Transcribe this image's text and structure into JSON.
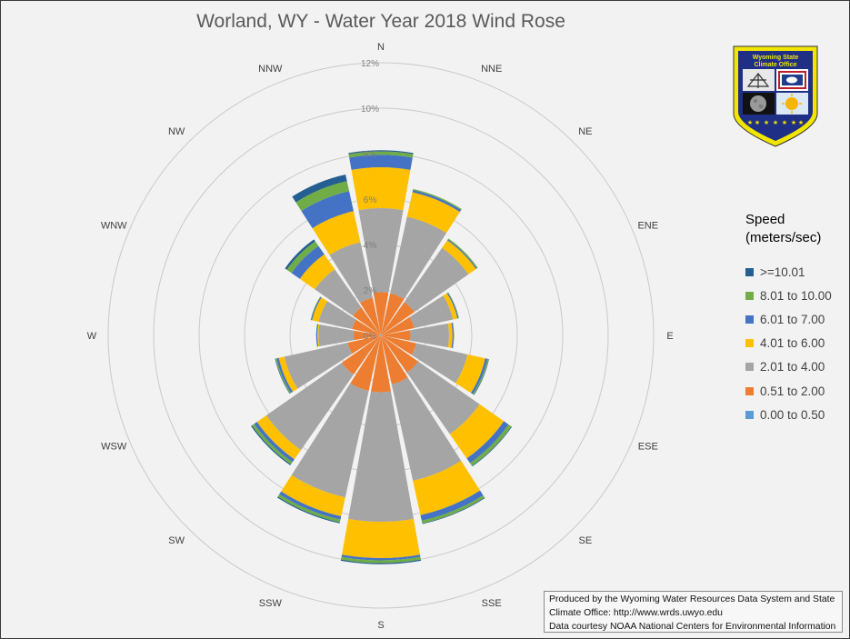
{
  "chart_data": {
    "type": "polar-stacked-bar",
    "title": "Worland, WY - Water Year 2018 Wind Rose",
    "directions": [
      "N",
      "NNE",
      "NE",
      "ENE",
      "E",
      "ESE",
      "SE",
      "SSE",
      "S",
      "SSW",
      "SW",
      "WSW",
      "W",
      "WNW",
      "NW",
      "NNW"
    ],
    "radial_ticks": [
      "0%",
      "2%",
      "4%",
      "6%",
      "8%",
      "10%",
      "12%"
    ],
    "radial_max": 12,
    "legend_title": "Speed (meters/sec)",
    "legend_title_line1": "Speed",
    "legend_title_line2": "(meters/sec)",
    "series": [
      {
        "name": "0.00 to 0.50",
        "color": "#5b9bd5",
        "values": [
          0.05,
          0.05,
          0.05,
          0.05,
          0.05,
          0.05,
          0.05,
          0.05,
          0.05,
          0.05,
          0.05,
          0.05,
          0.05,
          0.05,
          0.05,
          0.05
        ]
      },
      {
        "name": "0.51 to 2.00",
        "color": "#ed7d31",
        "values": [
          1.85,
          1.85,
          1.75,
          1.45,
          1.25,
          1.55,
          1.95,
          2.15,
          2.45,
          2.45,
          2.05,
          1.45,
          1.15,
          1.25,
          1.45,
          1.65
        ]
      },
      {
        "name": "2.01 to 4.00",
        "color": "#a5a5a5",
        "values": [
          3.7,
          3.45,
          2.9,
          1.75,
          1.7,
          2.3,
          3.3,
          4.35,
          5.7,
          4.8,
          4.05,
          2.85,
          1.55,
          1.5,
          2.05,
          2.5
        ]
      },
      {
        "name": "4.01 to 6.00",
        "color": "#ffc000",
        "values": [
          1.8,
          1.1,
          0.4,
          0.2,
          0.15,
          0.8,
          1.3,
          1.55,
          1.6,
          0.85,
          0.5,
          0.25,
          0.05,
          0.3,
          0.8,
          1.4
        ]
      },
      {
        "name": "6.01 to 7.00",
        "color": "#4472c4",
        "values": [
          0.55,
          0.1,
          0.05,
          0.05,
          0.05,
          0.1,
          0.25,
          0.25,
          0.1,
          0.15,
          0.15,
          0.1,
          0.05,
          0.05,
          0.45,
          0.9
        ]
      },
      {
        "name": "8.01 to 10.00",
        "color": "#70ad47",
        "values": [
          0.15,
          0.05,
          0.05,
          0.02,
          0.02,
          0.05,
          0.15,
          0.12,
          0.12,
          0.12,
          0.12,
          0.05,
          0.0,
          0.02,
          0.25,
          0.45
        ]
      },
      {
        "name": ">=10.01",
        "color": "#255e91",
        "values": [
          0.05,
          0.0,
          0.0,
          0.0,
          0.0,
          0.02,
          0.03,
          0.03,
          0.05,
          0.05,
          0.05,
          0.02,
          0.0,
          0.0,
          0.1,
          0.3
        ]
      }
    ]
  },
  "legend_items": [
    {
      "label": ">=10.01",
      "color": "#255e91"
    },
    {
      "label": "8.01 to 10.00",
      "color": "#70ad47"
    },
    {
      "label": "6.01 to 7.00",
      "color": "#4472c4"
    },
    {
      "label": "4.01 to 6.00",
      "color": "#ffc000"
    },
    {
      "label": "2.01 to 4.00",
      "color": "#a5a5a5"
    },
    {
      "label": "0.51 to 2.00",
      "color": "#ed7d31"
    },
    {
      "label": "0.00 to 0.50",
      "color": "#5b9bd5"
    }
  ],
  "logo": {
    "line1": "Wyoming State",
    "line2": "Climate Office"
  },
  "credits": {
    "line1": "Produced by the Wyoming Water Resources Data System and State",
    "line2": "Climate Office: http://www.wrds.uwyo.edu",
    "line3": "Data courtesy NOAA National Centers for Environmental Information"
  }
}
